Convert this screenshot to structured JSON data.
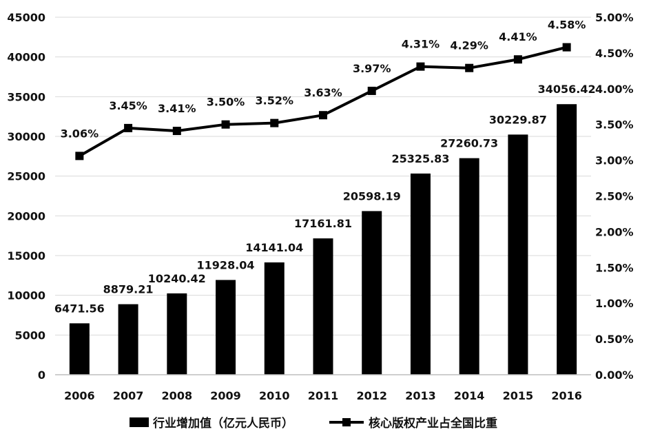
{
  "chart_data": {
    "type": "bar+line",
    "categories": [
      "2006",
      "2007",
      "2008",
      "2009",
      "2010",
      "2011",
      "2012",
      "2013",
      "2014",
      "2015",
      "2016"
    ],
    "series": [
      {
        "name": "行业增加值（亿元人民币）",
        "type": "bar",
        "axis": "left",
        "values": [
          6471.56,
          8879.21,
          10240.42,
          11928.04,
          14141.04,
          17161.81,
          20598.19,
          25325.83,
          27260.73,
          30229.87,
          34056.42
        ],
        "labels": [
          "6471.56",
          "8879.21",
          "10240.42",
          "11928.04",
          "14141.04",
          "17161.81",
          "20598.19",
          "25325.83",
          "27260.73",
          "30229.87",
          "34056.42"
        ]
      },
      {
        "name": "核心版权产业占全国比重",
        "type": "line",
        "axis": "right",
        "values": [
          3.06,
          3.45,
          3.41,
          3.5,
          3.52,
          3.63,
          3.97,
          4.31,
          4.29,
          4.41,
          4.58
        ],
        "labels": [
          "3.06%",
          "3.45%",
          "3.41%",
          "3.50%",
          "3.52%",
          "3.63%",
          "3.97%",
          "4.31%",
          "4.29%",
          "4.41%",
          "4.58%"
        ]
      }
    ],
    "y_left": {
      "lim": [
        0,
        45000
      ],
      "ticks": [
        "0",
        "5000",
        "10000",
        "15000",
        "20000",
        "25000",
        "30000",
        "35000",
        "40000",
        "45000"
      ]
    },
    "y_right": {
      "lim": [
        0,
        5
      ],
      "ticks": [
        "0.00%",
        "0.50%",
        "1.00%",
        "1.50%",
        "2.00%",
        "2.50%",
        "3.00%",
        "3.50%",
        "4.00%",
        "4.50%",
        "5.00%"
      ]
    },
    "grid": "horizontal",
    "legend_position": "bottom",
    "colors": {
      "bar": "#000000",
      "line": "#000000",
      "grid": "#d9d9d9"
    }
  }
}
